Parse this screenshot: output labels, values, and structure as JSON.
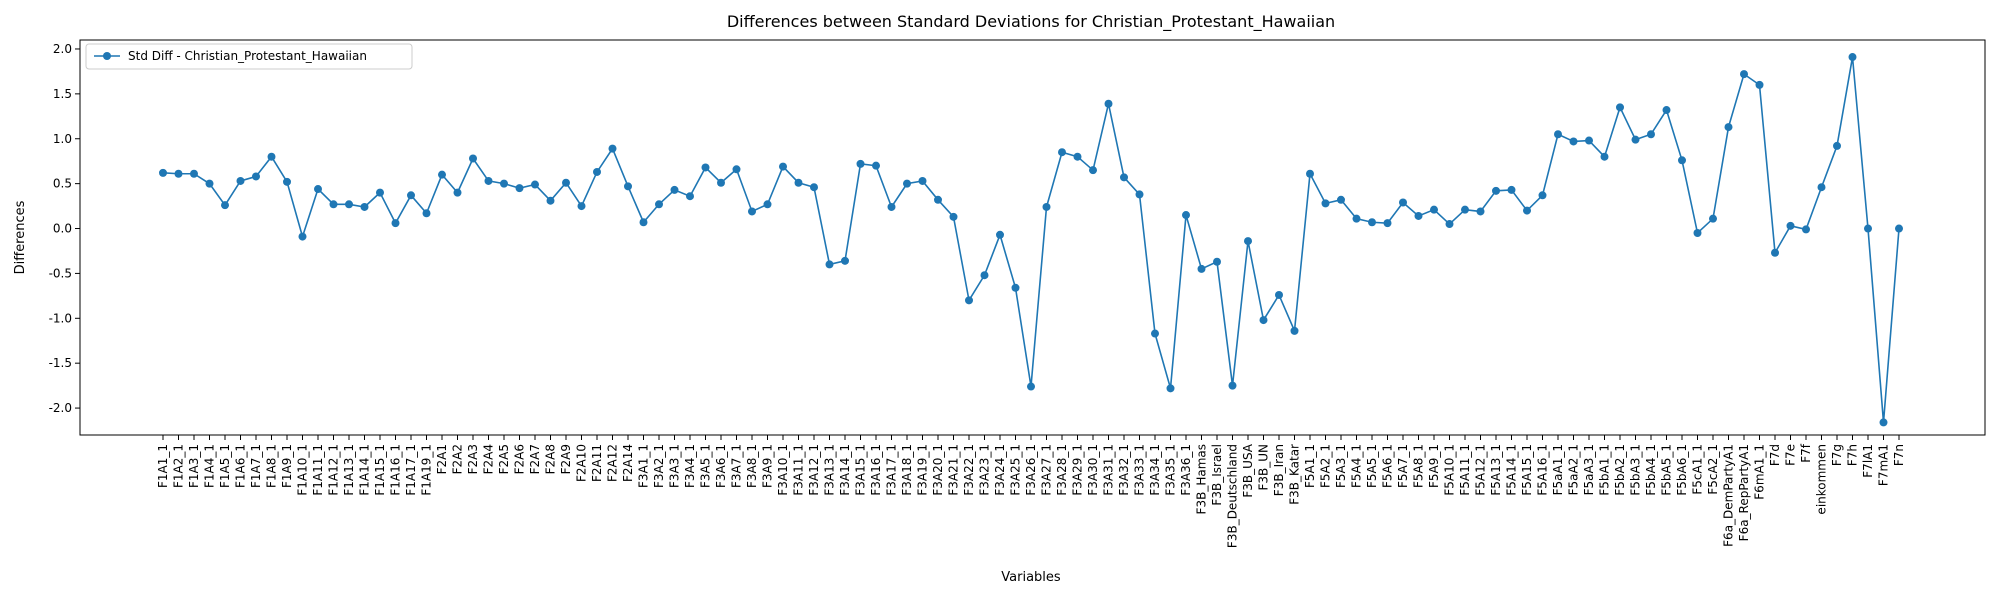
{
  "chart_data": {
    "type": "line",
    "title": "Differences between Standard Deviations for Christian_Protestant_Hawaiian",
    "xlabel": "Variables",
    "ylabel": "Differences",
    "ylim": [
      -2.3,
      2.1
    ],
    "yticks": [
      "-2.0",
      "-1.5",
      "-1.0",
      "-0.5",
      "0.0",
      "0.5",
      "1.0",
      "1.5",
      "2.0"
    ],
    "grid": false,
    "legend_position": "top-left",
    "line_color": "#1f77b4",
    "categories": [
      "F1A1_1",
      "F1A2_1",
      "F1A3_1",
      "F1A4_1",
      "F1A5_1",
      "F1A6_1",
      "F1A7_1",
      "F1A8_1",
      "F1A9_1",
      "F1A10_1",
      "F1A11_1",
      "F1A12_1",
      "F1A13_1",
      "F1A14_1",
      "F1A15_1",
      "F1A16_1",
      "F1A17_1",
      "F1A19_1",
      "F2A1",
      "F2A2",
      "F2A3",
      "F2A4",
      "F2A5",
      "F2A6",
      "F2A7",
      "F2A8",
      "F2A9",
      "F2A10",
      "F2A11",
      "F2A12",
      "F2A14",
      "F3A1_1",
      "F3A2_1",
      "F3A3_1",
      "F3A4_1",
      "F3A5_1",
      "F3A6_1",
      "F3A7_1",
      "F3A8_1",
      "F3A9_1",
      "F3A10_1",
      "F3A11_1",
      "F3A12_1",
      "F3A13_1",
      "F3A14_1",
      "F3A15_1",
      "F3A16_1",
      "F3A17_1",
      "F3A18_1",
      "F3A19_1",
      "F3A20_1",
      "F3A21_1",
      "F3A22_1",
      "F3A23_1",
      "F3A24_1",
      "F3A25_1",
      "F3A26_1",
      "F3A27_1",
      "F3A28_1",
      "F3A29_1",
      "F3A30_1",
      "F3A31_1",
      "F3A32_1",
      "F3A33_1",
      "F3A34_1",
      "F3A35_1",
      "F3A36_1",
      "F3B_Hamas",
      "F3B_Israel",
      "F3B_Deutschland",
      "F3B_USA",
      "F3B_UN",
      "F3B_Iran",
      "F3B_Katar",
      "F5A1_1",
      "F5A2_1",
      "F5A3_1",
      "F5A4_1",
      "F5A5_1",
      "F5A6_1",
      "F5A7_1",
      "F5A8_1",
      "F5A9_1",
      "F5A10_1",
      "F5A11_1",
      "F5A12_1",
      "F5A13_1",
      "F5A14_1",
      "F5A15_1",
      "F5A16_1",
      "F5aA1_1",
      "F5aA2_1",
      "F5aA3_1",
      "F5bA1_1",
      "F5bA2_1",
      "F5bA3_1",
      "F5bA4_1",
      "F5bA5_1",
      "F5bA6_1",
      "F5cA1_1",
      "F5cA2_1",
      "F6a_DemPartyA1",
      "F6a_RepPartyA1",
      "F6mA1_1",
      "F7d",
      "F7e",
      "F7f",
      "einkommen",
      "F7g",
      "F7h",
      "F7lA1",
      "F7mA1",
      "F7n"
    ],
    "series": [
      {
        "name": "Std Diff - Christian_Protestant_Hawaiian",
        "values": [
          0.62,
          0.61,
          0.61,
          0.5,
          0.26,
          0.53,
          0.58,
          0.8,
          0.52,
          -0.09,
          0.44,
          0.27,
          0.27,
          0.24,
          0.4,
          0.06,
          0.37,
          0.17,
          0.6,
          0.4,
          0.78,
          0.53,
          0.5,
          0.45,
          0.49,
          0.31,
          0.51,
          0.25,
          0.63,
          0.89,
          0.47,
          0.07,
          0.27,
          0.43,
          0.36,
          0.68,
          0.51,
          0.66,
          0.19,
          0.27,
          0.69,
          0.51,
          0.46,
          -0.4,
          -0.36,
          0.72,
          0.7,
          0.24,
          0.5,
          0.53,
          0.32,
          0.13,
          -0.8,
          -0.52,
          -0.07,
          -0.66,
          -1.76,
          0.24,
          0.85,
          0.8,
          0.65,
          1.39,
          0.57,
          0.38,
          -1.17,
          -1.78,
          0.15,
          -0.45,
          -0.37,
          -1.75,
          -0.14,
          -1.02,
          -0.74,
          -1.14,
          0.61,
          0.28,
          0.32,
          0.11,
          0.07,
          0.06,
          0.29,
          0.14,
          0.21,
          0.05,
          0.21,
          0.19,
          0.42,
          0.43,
          0.2,
          0.37,
          1.05,
          0.97,
          0.98,
          0.8,
          1.35,
          0.99,
          1.05,
          1.32,
          0.76,
          -0.05,
          0.11,
          1.13,
          1.72,
          1.6,
          -0.27,
          0.03,
          -0.01,
          0.46,
          0.92,
          1.91,
          0.0,
          -2.16,
          0.0
        ]
      }
    ]
  }
}
